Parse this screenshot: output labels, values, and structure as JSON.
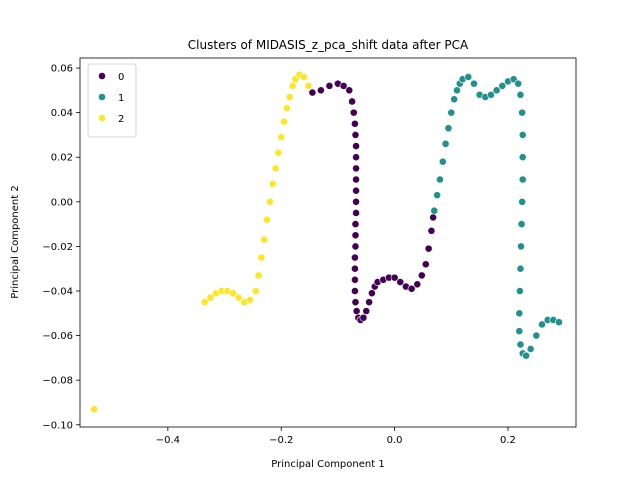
{
  "chart_data": {
    "type": "scatter",
    "title": "Clusters of MIDASIS_z_pca_shift data after PCA",
    "xlabel": "Principal Component 1",
    "ylabel": "Principal Component 2",
    "xlim": [
      -0.555,
      0.32
    ],
    "ylim": [
      -0.101,
      0.0645
    ],
    "xticks": [
      -0.4,
      -0.2,
      0.0,
      0.2
    ],
    "xtick_labels": [
      "−0.4",
      "−0.2",
      "0.0",
      "0.2"
    ],
    "yticks": [
      -0.1,
      -0.08,
      -0.06,
      -0.04,
      -0.02,
      0.0,
      0.02,
      0.04,
      0.06
    ],
    "ytick_labels": [
      "−0.10",
      "−0.08",
      "−0.06",
      "−0.04",
      "−0.02",
      "0.00",
      "0.02",
      "0.04",
      "0.06"
    ],
    "grid": false,
    "legend_position": "top-left",
    "series": [
      {
        "name": "0",
        "color": "#440154",
        "points": [
          [
            -0.145,
            0.049
          ],
          [
            -0.13,
            0.05
          ],
          [
            -0.115,
            0.052
          ],
          [
            -0.1,
            0.053
          ],
          [
            -0.09,
            0.052
          ],
          [
            -0.08,
            0.05
          ],
          [
            -0.075,
            0.045
          ],
          [
            -0.072,
            0.04
          ],
          [
            -0.07,
            0.035
          ],
          [
            -0.069,
            0.03
          ],
          [
            -0.068,
            0.025
          ],
          [
            -0.068,
            0.02
          ],
          [
            -0.068,
            0.015
          ],
          [
            -0.068,
            0.01
          ],
          [
            -0.068,
            0.005
          ],
          [
            -0.068,
            0.0
          ],
          [
            -0.068,
            -0.005
          ],
          [
            -0.069,
            -0.01
          ],
          [
            -0.069,
            -0.015
          ],
          [
            -0.069,
            -0.02
          ],
          [
            -0.07,
            -0.025
          ],
          [
            -0.07,
            -0.03
          ],
          [
            -0.07,
            -0.035
          ],
          [
            -0.07,
            -0.04
          ],
          [
            -0.069,
            -0.045
          ],
          [
            -0.067,
            -0.049
          ],
          [
            -0.064,
            -0.052
          ],
          [
            -0.06,
            -0.053
          ],
          [
            -0.055,
            -0.052
          ],
          [
            -0.05,
            -0.049
          ],
          [
            -0.045,
            -0.045
          ],
          [
            -0.04,
            -0.041
          ],
          [
            -0.035,
            -0.038
          ],
          [
            -0.03,
            -0.036
          ],
          [
            -0.02,
            -0.035
          ],
          [
            -0.01,
            -0.034
          ],
          [
            0.0,
            -0.034
          ],
          [
            0.01,
            -0.036
          ],
          [
            0.02,
            -0.038
          ],
          [
            0.03,
            -0.039
          ],
          [
            0.04,
            -0.037
          ],
          [
            0.048,
            -0.033
          ],
          [
            0.055,
            -0.028
          ],
          [
            0.06,
            -0.021
          ],
          [
            0.065,
            -0.013
          ],
          [
            0.068,
            -0.007
          ]
        ]
      },
      {
        "name": "1",
        "color": "#21918c",
        "points": [
          [
            0.07,
            -0.004
          ],
          [
            0.075,
            0.003
          ],
          [
            0.08,
            0.01
          ],
          [
            0.085,
            0.018
          ],
          [
            0.09,
            0.026
          ],
          [
            0.095,
            0.033
          ],
          [
            0.1,
            0.04
          ],
          [
            0.105,
            0.046
          ],
          [
            0.11,
            0.05
          ],
          [
            0.115,
            0.053
          ],
          [
            0.12,
            0.055
          ],
          [
            0.13,
            0.056
          ],
          [
            0.14,
            0.053
          ],
          [
            0.15,
            0.048
          ],
          [
            0.16,
            0.047
          ],
          [
            0.17,
            0.048
          ],
          [
            0.18,
            0.05
          ],
          [
            0.19,
            0.052
          ],
          [
            0.2,
            0.054
          ],
          [
            0.21,
            0.055
          ],
          [
            0.218,
            0.053
          ],
          [
            0.222,
            0.048
          ],
          [
            0.225,
            0.04
          ],
          [
            0.226,
            0.03
          ],
          [
            0.226,
            0.02
          ],
          [
            0.226,
            0.01
          ],
          [
            0.225,
            0.0
          ],
          [
            0.224,
            -0.01
          ],
          [
            0.223,
            -0.02
          ],
          [
            0.222,
            -0.03
          ],
          [
            0.221,
            -0.04
          ],
          [
            0.22,
            -0.05
          ],
          [
            0.22,
            -0.058
          ],
          [
            0.222,
            -0.064
          ],
          [
            0.226,
            -0.068
          ],
          [
            0.232,
            -0.069
          ],
          [
            0.24,
            -0.066
          ],
          [
            0.25,
            -0.06
          ],
          [
            0.26,
            -0.055
          ],
          [
            0.27,
            -0.053
          ],
          [
            0.28,
            -0.053
          ],
          [
            0.29,
            -0.054
          ]
        ]
      },
      {
        "name": "2",
        "color": "#fde725",
        "points": [
          [
            -0.53,
            -0.093
          ],
          [
            -0.335,
            -0.045
          ],
          [
            -0.325,
            -0.043
          ],
          [
            -0.315,
            -0.041
          ],
          [
            -0.305,
            -0.04
          ],
          [
            -0.295,
            -0.04
          ],
          [
            -0.285,
            -0.041
          ],
          [
            -0.275,
            -0.043
          ],
          [
            -0.265,
            -0.045
          ],
          [
            -0.255,
            -0.044
          ],
          [
            -0.245,
            -0.04
          ],
          [
            -0.24,
            -0.033
          ],
          [
            -0.235,
            -0.025
          ],
          [
            -0.23,
            -0.017
          ],
          [
            -0.225,
            -0.008
          ],
          [
            -0.22,
            0.0
          ],
          [
            -0.215,
            0.008
          ],
          [
            -0.21,
            0.015
          ],
          [
            -0.205,
            0.022
          ],
          [
            -0.2,
            0.029
          ],
          [
            -0.195,
            0.036
          ],
          [
            -0.19,
            0.042
          ],
          [
            -0.185,
            0.047
          ],
          [
            -0.18,
            0.052
          ],
          [
            -0.175,
            0.055
          ],
          [
            -0.168,
            0.057
          ],
          [
            -0.16,
            0.056
          ],
          [
            -0.152,
            0.052
          ]
        ]
      }
    ]
  }
}
